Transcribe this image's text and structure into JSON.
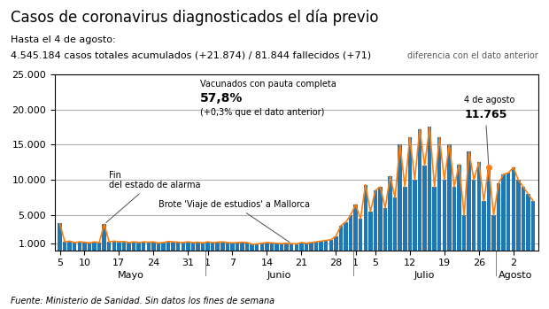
{
  "chart_data": {
    "type": "bar",
    "title": "Casos de coronavirus diagnosticados el día previo",
    "subtitle": [
      "Hasta el 4 de agosto:",
      "4.545.184 casos totales acumulados (+21.874) / 81.844 fallecidos (+71)"
    ],
    "subtitle_note": "diferencia con el dato anterior",
    "source": "Fuente: Ministerio de Sanidad. Sin datos los fines de semana",
    "categories": [
      "5",
      null,
      null,
      null,
      null,
      "10",
      null,
      null,
      null,
      null,
      null,
      null,
      "17",
      null,
      null,
      null,
      null,
      null,
      null,
      "24",
      null,
      null,
      null,
      null,
      null,
      null,
      "31",
      null,
      null,
      null,
      "1",
      null,
      null,
      null,
      null,
      "7",
      null,
      null,
      null,
      null,
      null,
      null,
      "14",
      null,
      null,
      null,
      null,
      null,
      null,
      "21",
      null,
      null,
      null,
      null,
      null,
      null,
      "28",
      null,
      null,
      null,
      "1",
      null,
      null,
      null,
      "5",
      null,
      null,
      null,
      null,
      null,
      null,
      "12",
      null,
      null,
      null,
      null,
      null,
      null,
      "19",
      null,
      null,
      null,
      null,
      null,
      null,
      "26",
      null,
      null,
      null,
      null,
      null,
      null,
      "2",
      null,
      null,
      null,
      null
    ],
    "months": [
      {
        "label": "Mayo",
        "start": 0
      },
      {
        "label": "Junio",
        "start": 30
      },
      {
        "label": "Julio",
        "start": 60
      },
      {
        "label": "Agosto",
        "start": 89
      }
    ],
    "series": [
      {
        "type": "bar",
        "values": [
          3800,
          1200,
          1300,
          1100,
          1200,
          1150,
          1050,
          1200,
          1100,
          3700,
          1200,
          1300,
          1200,
          1250,
          1100,
          1200,
          1100,
          1200,
          1150,
          1200,
          1050,
          1100,
          1250,
          1200,
          1150,
          1100,
          1200,
          1100,
          1150,
          1050,
          1200,
          1100,
          1150,
          1200,
          1100,
          1050,
          1100,
          1150,
          1100,
          850,
          900,
          1000,
          1100,
          1050,
          1000,
          950,
          1000,
          950,
          900,
          1100,
          1000,
          1100,
          1200,
          1300,
          1400,
          1500,
          2000,
          3500,
          4000,
          5000,
          6500,
          4500,
          9300,
          5500,
          8500,
          9000,
          6000,
          10500,
          7500,
          15000,
          9000,
          16000,
          10000,
          17200,
          12000,
          17500,
          9000,
          16000,
          10000,
          15000,
          9000,
          12200,
          5000,
          14000,
          10000,
          12500,
          7000,
          11765,
          5000,
          9500,
          10800,
          11000,
          11765,
          10000,
          9000,
          8000,
          7000
        ]
      },
      {
        "type": "line",
        "values": [
          3800,
          1200,
          1300,
          1100,
          1200,
          1150,
          1050,
          1200,
          1100,
          3700,
          1200,
          1300,
          1200,
          1250,
          1100,
          1200,
          1100,
          1200,
          1150,
          1200,
          1050,
          1100,
          1250,
          1200,
          1150,
          1100,
          1200,
          1100,
          1150,
          1050,
          1200,
          1100,
          1150,
          1200,
          1100,
          1050,
          1100,
          1150,
          1100,
          850,
          900,
          1000,
          1100,
          1050,
          1000,
          950,
          1000,
          950,
          900,
          1100,
          1000,
          1100,
          1200,
          1300,
          1400,
          1500,
          2000,
          3500,
          4000,
          5000,
          6500,
          4500,
          9300,
          5500,
          8500,
          9000,
          6000,
          10500,
          7500,
          15000,
          9000,
          16000,
          10000,
          17200,
          12000,
          17500,
          9000,
          16000,
          10000,
          15000,
          9000,
          12200,
          5000,
          14000,
          10000,
          12500,
          7000,
          11765,
          5000,
          9500,
          10800,
          11000,
          11765,
          10000,
          9000,
          8000,
          7000
        ]
      }
    ],
    "ylim": [
      0,
      25000
    ],
    "yticks": [
      {
        "value": 1000,
        "label": "1.000"
      },
      {
        "value": 5000,
        "label": "5.000"
      },
      {
        "value": 10000,
        "label": "10.000"
      },
      {
        "value": 15000,
        "label": "15.000"
      },
      {
        "value": 20000,
        "label": "20.000"
      },
      {
        "value": 25000,
        "label": "25.000"
      }
    ],
    "grid": true,
    "annotations": [
      {
        "text": "Fin\ndel estado de alarma",
        "x": 9,
        "y": 3700
      },
      {
        "text": "Brote 'Viaje de estudios' a Mallorca",
        "x": 47,
        "y": 950
      },
      {
        "text": "4 de agosto",
        "value_label": "11.765",
        "x": 87,
        "y": 11765
      }
    ],
    "callout": [
      "Vacunados con pauta completa",
      "57,8%",
      "(+0,3% que el dato anterior)"
    ]
  }
}
